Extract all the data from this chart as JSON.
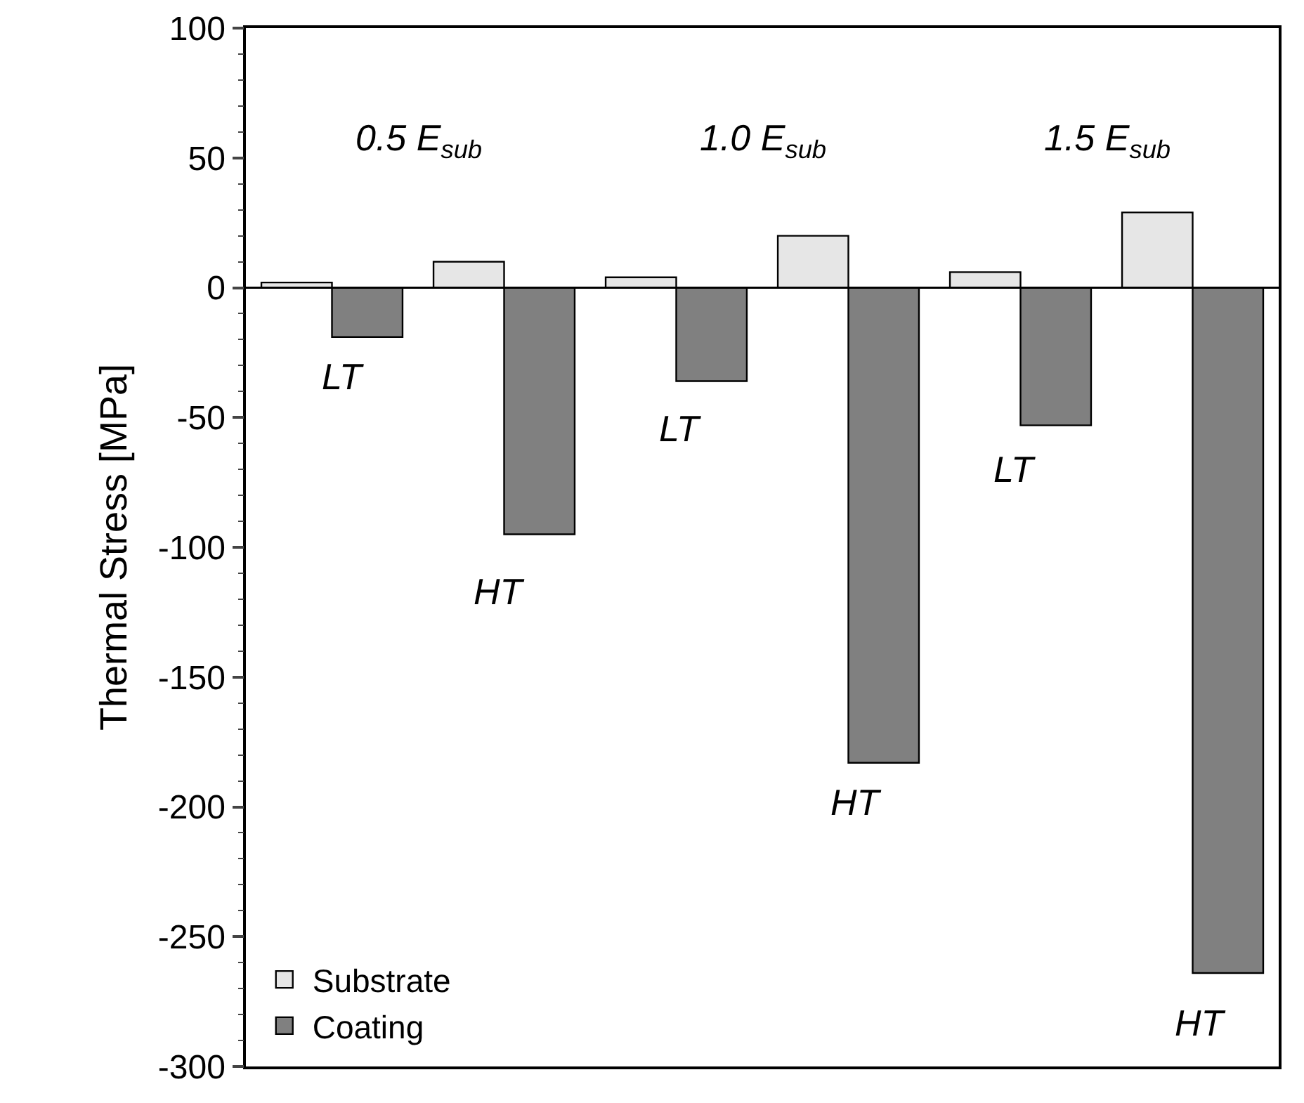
{
  "chart_data": {
    "type": "bar",
    "ylabel": "Thermal Stress [MPa]",
    "categories": [
      null,
      null,
      null,
      null,
      null,
      null
    ],
    "series": [
      {
        "name": "Substrate",
        "color": "#e6e6e6",
        "values": [
          2,
          10,
          4,
          20,
          6,
          29
        ]
      },
      {
        "name": "Coating",
        "color": "#808080",
        "values": [
          -19,
          -95,
          -36,
          -183,
          -53,
          -264
        ]
      }
    ],
    "annotations": [
      "0.5 E$_{sub}$",
      "1.0 E$_{sub}$",
      "1.5 E$_{sub}$",
      "LT",
      "HT",
      "LT",
      "HT",
      "LT",
      "HT"
    ],
    "ylim": [
      -300,
      100
    ],
    "yticks": [
      -300,
      -250,
      -200,
      -150,
      -100,
      -50,
      0,
      50,
      100
    ],
    "ref_lines": [
      {
        "axis": "y",
        "value": 0,
        "color": "#000000"
      }
    ],
    "grid": false,
    "legend": "bottom left",
    "tick_labels": "y"
  }
}
